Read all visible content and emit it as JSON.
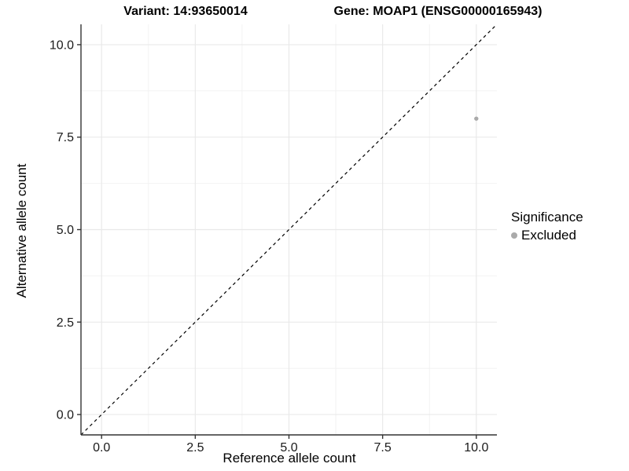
{
  "chart_data": {
    "type": "scatter",
    "title_left": "Variant: 14:93650014",
    "title_right": "Gene: MOAP1 (ENSG00000165943)",
    "xlabel": "Reference allele count",
    "ylabel": "Alternative allele count",
    "xlim": [
      -0.55,
      10.55
    ],
    "ylim": [
      -0.55,
      10.55
    ],
    "x_ticks": [
      {
        "value": 0.0,
        "label": "0.0"
      },
      {
        "value": 2.5,
        "label": "2.5"
      },
      {
        "value": 5.0,
        "label": "5.0"
      },
      {
        "value": 7.5,
        "label": "7.5"
      },
      {
        "value": 10.0,
        "label": "10.0"
      }
    ],
    "y_ticks": [
      {
        "value": 0.0,
        "label": "0.0"
      },
      {
        "value": 2.5,
        "label": "2.5"
      },
      {
        "value": 5.0,
        "label": "5.0"
      },
      {
        "value": 7.5,
        "label": "7.5"
      },
      {
        "value": 10.0,
        "label": "10.0"
      }
    ],
    "x_minor_ticks": [
      1.25,
      3.75,
      6.25,
      8.75
    ],
    "y_minor_ticks": [
      1.25,
      3.75,
      6.25,
      8.75
    ],
    "grid": "major+minor",
    "legend_position": "right",
    "identity_line": {
      "from": {
        "x": -0.55,
        "y": -0.55
      },
      "to": {
        "x": 10.55,
        "y": 10.55
      },
      "style": "dashed",
      "color": "#000000"
    },
    "series": [
      {
        "name": "Excluded",
        "color": "#aaaaaa",
        "points": [
          {
            "x": 10,
            "y": 8
          }
        ]
      }
    ],
    "legend": {
      "title": "Significance",
      "items": [
        {
          "label": "Excluded",
          "color": "#aaaaaa"
        }
      ]
    },
    "colors": {
      "grid_major": "#e9e9e9",
      "grid_minor": "#f2f2f2",
      "axis_line": "#333333",
      "tick_mark": "#333333",
      "tick_label": "#1a1a1a"
    }
  }
}
